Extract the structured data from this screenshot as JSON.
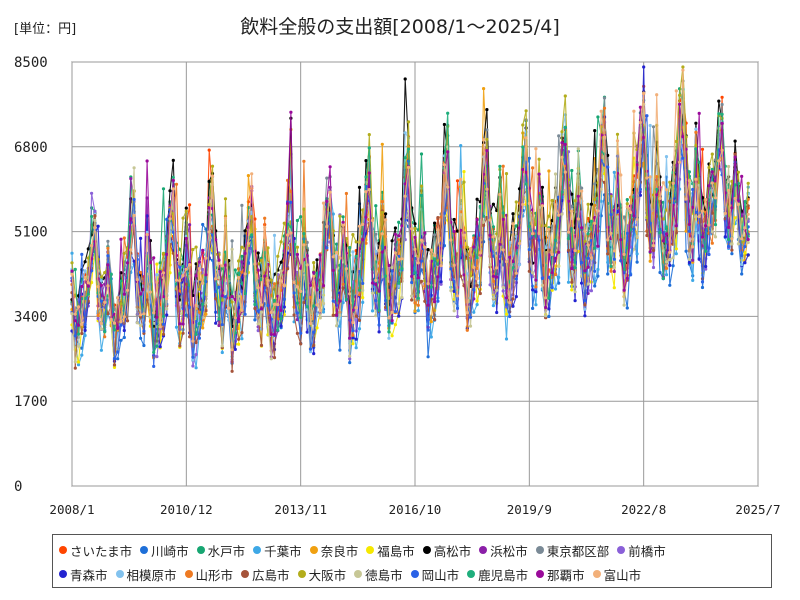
{
  "unit_label": "[単位：円]",
  "title": "飲料全般の支出額[2008/1～2025/4]",
  "chart_data": {
    "type": "line",
    "title": "飲料全般の支出額[2008/1～2025/4]",
    "unit": "[単位：円]",
    "xlabel": "",
    "ylabel": "",
    "x_range": [
      "2008/1",
      "2025/7"
    ],
    "x_ticks": [
      "2008/1",
      "2010/12",
      "2013/11",
      "2016/10",
      "2019/9",
      "2022/8",
      "2025/7"
    ],
    "ylim": [
      0,
      8500
    ],
    "y_ticks": [
      0,
      1700,
      3400,
      5100,
      6800,
      8500
    ],
    "grid": true,
    "legend_position": "bottom",
    "data_period": "2008/1～2025/4 (monthly)",
    "approx_trend_by_year": {
      "years": [
        2008,
        2009,
        2010,
        2011,
        2012,
        2013,
        2014,
        2015,
        2016,
        2017,
        2018,
        2019,
        2020,
        2021,
        2022,
        2023,
        2024,
        2025
      ],
      "typical_low": [
        3000,
        3000,
        3000,
        3000,
        3000,
        3100,
        3100,
        3200,
        3400,
        3500,
        3600,
        3700,
        4000,
        4000,
        4300,
        4500,
        4600,
        4800
      ],
      "typical_high": [
        5200,
        5000,
        5500,
        5600,
        5500,
        5400,
        5600,
        5700,
        6200,
        6200,
        6300,
        6500,
        6600,
        6800,
        7100,
        7200,
        7500,
        6800
      ]
    },
    "series": [
      {
        "name": "さいたま市",
        "color": "#ff4500"
      },
      {
        "name": "川崎市",
        "color": "#1e6fd8"
      },
      {
        "name": "水戸市",
        "color": "#17a672"
      },
      {
        "name": "千葉市",
        "color": "#3ea8e6"
      },
      {
        "name": "奈良市",
        "color": "#f0a010"
      },
      {
        "name": "福島市",
        "color": "#f5e800"
      },
      {
        "name": "高松市",
        "color": "#000000"
      },
      {
        "name": "浜松市",
        "color": "#8b1fa8"
      },
      {
        "name": "東京都区部",
        "color": "#7a8a96"
      },
      {
        "name": "前橋市",
        "color": "#8a60d8"
      },
      {
        "name": "青森市",
        "color": "#2323d0"
      },
      {
        "name": "相模原市",
        "color": "#82c2ee"
      },
      {
        "name": "山形市",
        "color": "#ee7a22"
      },
      {
        "name": "広島市",
        "color": "#a5533a"
      },
      {
        "name": "大阪市",
        "color": "#b3ad1c"
      },
      {
        "name": "徳島市",
        "color": "#c7c796"
      },
      {
        "name": "岡山市",
        "color": "#2a62e6"
      },
      {
        "name": "鹿児島市",
        "color": "#1fae7c"
      },
      {
        "name": "那覇市",
        "color": "#9a0a9a"
      },
      {
        "name": "富山市",
        "color": "#f2b07a"
      }
    ]
  }
}
